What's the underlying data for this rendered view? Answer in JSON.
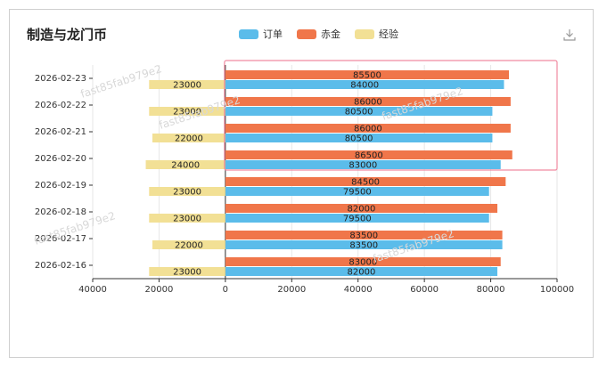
{
  "title": "制造与龙门币",
  "legend": [
    {
      "name": "订单",
      "color": "#5bbcea"
    },
    {
      "name": "赤金",
      "color": "#f0764a"
    },
    {
      "name": "经验",
      "color": "#f2e095"
    }
  ],
  "chart_data": {
    "type": "bar",
    "orientation": "horizontal",
    "categories": [
      "2026-02-23",
      "2026-02-22",
      "2026-02-21",
      "2026-02-20",
      "2026-02-19",
      "2026-02-18",
      "2026-02-17",
      "2026-02-16"
    ],
    "series": [
      {
        "name": "订单",
        "values": [
          84000,
          80500,
          80500,
          83000,
          79500,
          79500,
          83500,
          82000
        ]
      },
      {
        "name": "赤金",
        "values": [
          85500,
          86000,
          86000,
          86500,
          84500,
          82000,
          83500,
          83000
        ]
      },
      {
        "name": "经验",
        "values": [
          23000,
          23000,
          22000,
          24000,
          23000,
          23000,
          22000,
          23000
        ],
        "direction": "negative"
      }
    ],
    "x_ticks": [
      "40000",
      "20000",
      "0",
      "20000",
      "40000",
      "60000",
      "80000",
      "100000"
    ],
    "xlim": [
      -40000,
      100000
    ],
    "grid": true,
    "legend_position": "top-center",
    "highlight_categories": [
      "2026-02-23",
      "2026-02-22",
      "2026-02-21",
      "2026-02-20"
    ],
    "highlight_color": "#f08aa0"
  },
  "watermarks": [
    "fast85fab979e2",
    "fast85fab979e2",
    "fast85fab979e2",
    "fast85fab979e2",
    "fast85fab979e2"
  ],
  "toolbar": {
    "download_icon": "download-icon"
  }
}
